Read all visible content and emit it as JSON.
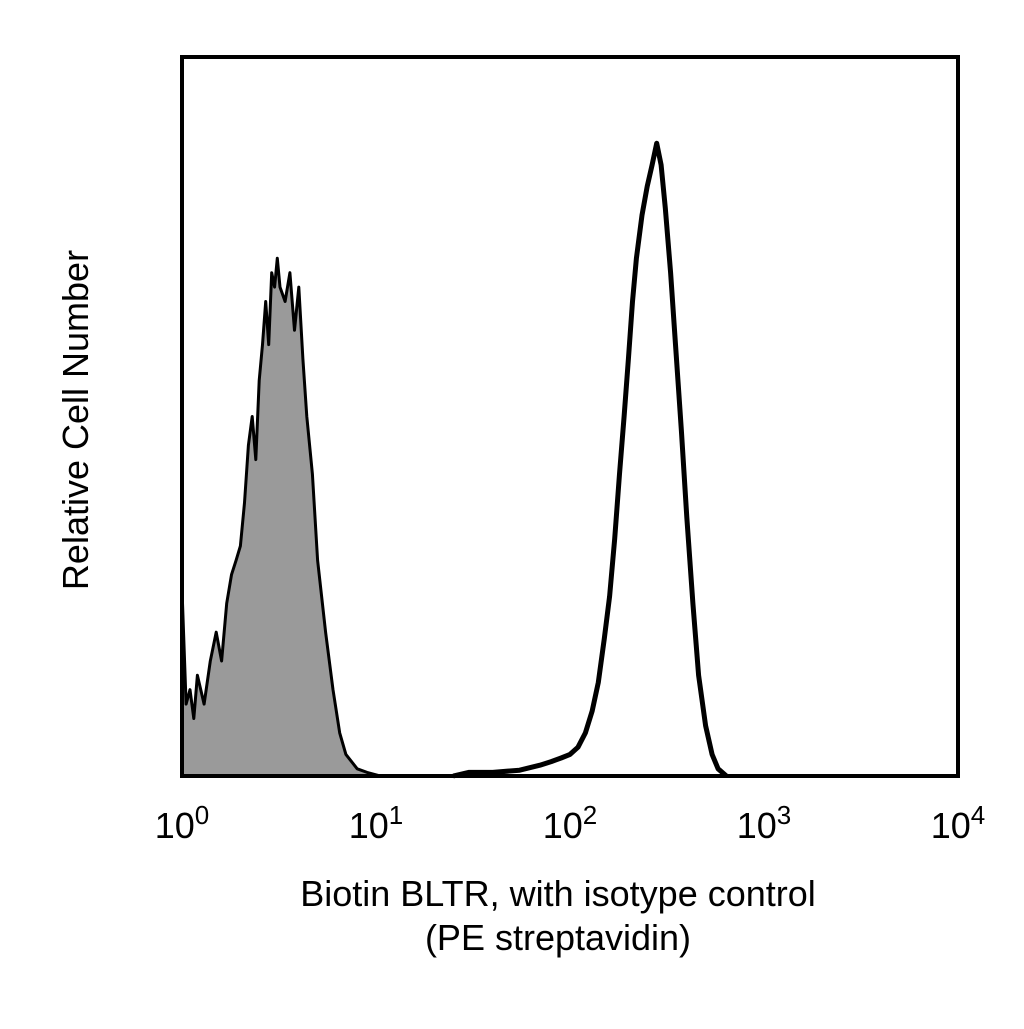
{
  "chart_data": {
    "type": "area",
    "x_scale": "log",
    "xlim": [
      1,
      10000
    ],
    "ylim": [
      0,
      100
    ],
    "y_ticks_shown": false,
    "grid": false,
    "legend": "none",
    "x_tick_labels": [
      {
        "value": 1,
        "base": "10",
        "exp": "0"
      },
      {
        "value": 10,
        "base": "10",
        "exp": "1"
      },
      {
        "value": 100,
        "base": "10",
        "exp": "2"
      },
      {
        "value": 1000,
        "base": "10",
        "exp": "3"
      },
      {
        "value": 10000,
        "base": "10",
        "exp": "4"
      }
    ],
    "xlabel_line1": "Biotin BLTR, with isotype control",
    "xlabel_line2": "(PE streptavidin)",
    "ylabel": "Relative Cell Number",
    "series": [
      {
        "style": "filled",
        "fill": "#9a9a9a",
        "stroke": "#000000",
        "points": [
          [
            1.0,
            26
          ],
          [
            1.05,
            10
          ],
          [
            1.1,
            12
          ],
          [
            1.15,
            8
          ],
          [
            1.2,
            14
          ],
          [
            1.3,
            10
          ],
          [
            1.4,
            16
          ],
          [
            1.5,
            20
          ],
          [
            1.6,
            16
          ],
          [
            1.7,
            24
          ],
          [
            1.8,
            28
          ],
          [
            1.9,
            30
          ],
          [
            2.0,
            32
          ],
          [
            2.1,
            38
          ],
          [
            2.2,
            46
          ],
          [
            2.3,
            50
          ],
          [
            2.4,
            44
          ],
          [
            2.5,
            55
          ],
          [
            2.6,
            60
          ],
          [
            2.7,
            66
          ],
          [
            2.8,
            60
          ],
          [
            2.9,
            70
          ],
          [
            3.0,
            68
          ],
          [
            3.1,
            72
          ],
          [
            3.2,
            68
          ],
          [
            3.4,
            66
          ],
          [
            3.6,
            70
          ],
          [
            3.8,
            62
          ],
          [
            4.0,
            68
          ],
          [
            4.2,
            58
          ],
          [
            4.4,
            50
          ],
          [
            4.7,
            42
          ],
          [
            5.0,
            30
          ],
          [
            5.5,
            20
          ],
          [
            6.0,
            12
          ],
          [
            6.5,
            6
          ],
          [
            7.0,
            3
          ],
          [
            8.0,
            1
          ],
          [
            9.0,
            0.5
          ],
          [
            10.5,
            0
          ]
        ]
      },
      {
        "style": "outline",
        "stroke": "#000000",
        "points": [
          [
            25,
            0
          ],
          [
            30,
            0.5
          ],
          [
            40,
            0.5
          ],
          [
            55,
            0.8
          ],
          [
            70,
            1.5
          ],
          [
            80,
            2
          ],
          [
            90,
            2.5
          ],
          [
            100,
            3
          ],
          [
            110,
            4
          ],
          [
            120,
            6
          ],
          [
            130,
            9
          ],
          [
            140,
            13
          ],
          [
            150,
            19
          ],
          [
            160,
            25
          ],
          [
            170,
            33
          ],
          [
            180,
            42
          ],
          [
            190,
            50
          ],
          [
            200,
            58
          ],
          [
            210,
            66
          ],
          [
            220,
            72
          ],
          [
            235,
            78
          ],
          [
            250,
            82
          ],
          [
            265,
            85
          ],
          [
            280,
            88
          ],
          [
            295,
            85
          ],
          [
            310,
            79
          ],
          [
            330,
            70
          ],
          [
            350,
            60
          ],
          [
            375,
            48
          ],
          [
            400,
            36
          ],
          [
            430,
            24
          ],
          [
            460,
            14
          ],
          [
            500,
            7
          ],
          [
            540,
            3
          ],
          [
            580,
            1
          ],
          [
            640,
            0
          ]
        ]
      }
    ]
  }
}
